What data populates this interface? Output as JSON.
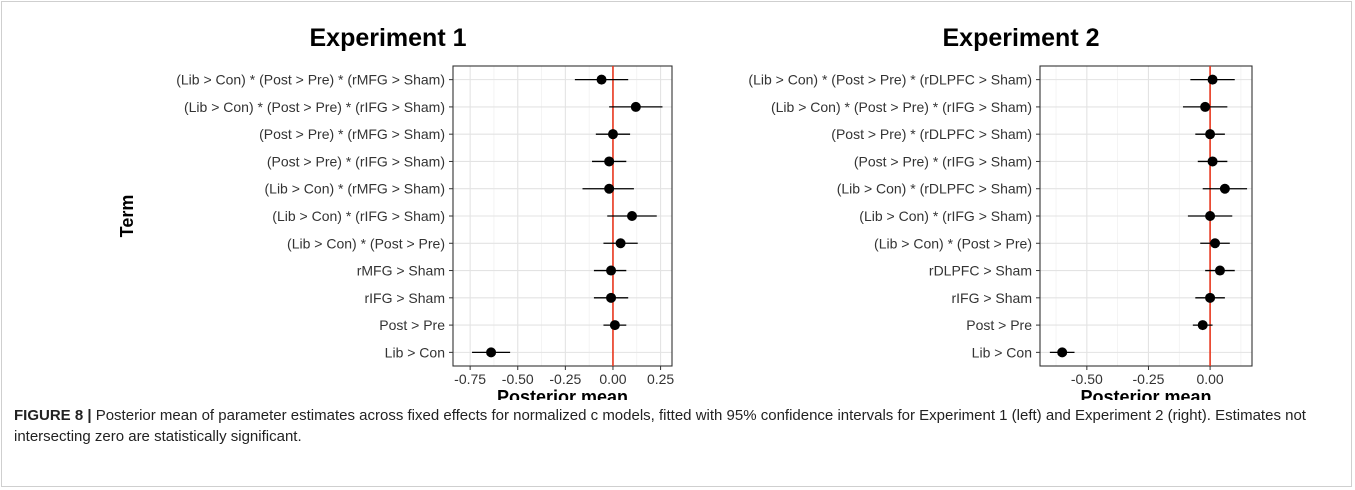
{
  "chart_data": [
    {
      "type": "forest",
      "title": "Experiment 1",
      "xlabel": "Posterior mean",
      "ylabel": "Term",
      "xlim": [
        -0.84,
        0.31
      ],
      "xticks": [
        -0.75,
        -0.5,
        -0.25,
        0.0,
        0.25
      ],
      "xtick_labels": [
        "-0.75",
        "-0.50",
        "-0.25",
        "0.00",
        "0.25"
      ],
      "reference_line": 0,
      "reference_color": "#e8361d",
      "grid": true,
      "terms": [
        {
          "label": "(Lib > Con) * (Post > Pre) * (rMFG > Sham)",
          "mean": -0.06,
          "lower": -0.2,
          "upper": 0.08
        },
        {
          "label": "(Lib > Con) * (Post > Pre) * (rIFG > Sham)",
          "mean": 0.12,
          "lower": -0.02,
          "upper": 0.26
        },
        {
          "label": "(Post > Pre) * (rMFG > Sham)",
          "mean": 0.0,
          "lower": -0.09,
          "upper": 0.09
        },
        {
          "label": "(Post > Pre) * (rIFG > Sham)",
          "mean": -0.02,
          "lower": -0.11,
          "upper": 0.07
        },
        {
          "label": "(Lib > Con) * (rMFG > Sham)",
          "mean": -0.02,
          "lower": -0.16,
          "upper": 0.11
        },
        {
          "label": "(Lib > Con) * (rIFG > Sham)",
          "mean": 0.1,
          "lower": -0.03,
          "upper": 0.23
        },
        {
          "label": "(Lib > Con) * (Post > Pre)",
          "mean": 0.04,
          "lower": -0.05,
          "upper": 0.13
        },
        {
          "label": "rMFG > Sham",
          "mean": -0.01,
          "lower": -0.1,
          "upper": 0.07
        },
        {
          "label": "rIFG > Sham",
          "mean": -0.01,
          "lower": -0.1,
          "upper": 0.08
        },
        {
          "label": "Post > Pre",
          "mean": 0.01,
          "lower": -0.05,
          "upper": 0.07
        },
        {
          "label": "Lib > Con",
          "mean": -0.64,
          "lower": -0.74,
          "upper": -0.54
        }
      ]
    },
    {
      "type": "forest",
      "title": "Experiment 2",
      "xlabel": "Posterior mean",
      "ylabel": "",
      "xlim": [
        -0.69,
        0.17
      ],
      "xticks": [
        -0.5,
        -0.25,
        0.0
      ],
      "xtick_labels": [
        "-0.50",
        "-0.25",
        "0.00"
      ],
      "reference_line": 0,
      "reference_color": "#e8361d",
      "grid": true,
      "terms": [
        {
          "label": "(Lib > Con) * (Post > Pre) * (rDLPFC > Sham)",
          "mean": 0.01,
          "lower": -0.08,
          "upper": 0.1
        },
        {
          "label": "(Lib > Con) * (Post > Pre) * (rIFG > Sham)",
          "mean": -0.02,
          "lower": -0.11,
          "upper": 0.07
        },
        {
          "label": "(Post > Pre) * (rDLPFC > Sham)",
          "mean": 0.0,
          "lower": -0.06,
          "upper": 0.06
        },
        {
          "label": "(Post > Pre) * (rIFG > Sham)",
          "mean": 0.01,
          "lower": -0.05,
          "upper": 0.07
        },
        {
          "label": "(Lib > Con) * (rDLPFC > Sham)",
          "mean": 0.06,
          "lower": -0.03,
          "upper": 0.15
        },
        {
          "label": "(Lib > Con) * (rIFG > Sham)",
          "mean": 0.0,
          "lower": -0.09,
          "upper": 0.09
        },
        {
          "label": "(Lib > Con) * (Post > Pre)",
          "mean": 0.02,
          "lower": -0.04,
          "upper": 0.08
        },
        {
          "label": "rDLPFC > Sham",
          "mean": 0.04,
          "lower": -0.02,
          "upper": 0.1
        },
        {
          "label": "rIFG > Sham",
          "mean": 0.0,
          "lower": -0.06,
          "upper": 0.06
        },
        {
          "label": "Post > Pre",
          "mean": -0.03,
          "lower": -0.07,
          "upper": 0.01
        },
        {
          "label": "Lib > Con",
          "mean": -0.6,
          "lower": -0.65,
          "upper": -0.55
        }
      ]
    }
  ],
  "caption": {
    "label": "FIGURE 8 |",
    "text": " Posterior mean of parameter estimates across fixed effects for normalized c models, fitted with 95% confidence intervals for Experiment 1 (left) and Experiment 2 (right). Estimates not intersecting zero are statistically significant."
  }
}
